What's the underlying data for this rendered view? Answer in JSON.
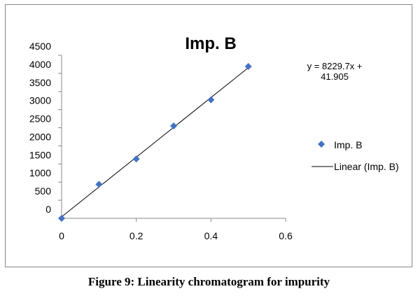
{
  "chart_data": {
    "type": "scatter",
    "title": "Imp. B",
    "xlabel": "",
    "ylabel": "",
    "xlim": [
      0,
      0.6
    ],
    "ylim": [
      0,
      4500
    ],
    "x_ticks": [
      "0",
      "0.2",
      "0.4",
      "0.6"
    ],
    "y_ticks": [
      "0",
      "500",
      "1000",
      "1500",
      "2000",
      "2500",
      "3000",
      "3500",
      "4000",
      "4500"
    ],
    "grid": false,
    "legend_position": "right",
    "series": [
      {
        "name": "Imp. B",
        "marker": "diamond",
        "color": "#4472C4",
        "x": [
          0,
          0.1,
          0.2,
          0.3,
          0.4,
          0.5
        ],
        "y": [
          0,
          940,
          1640,
          2550,
          3270,
          4190
        ]
      }
    ],
    "trendline": {
      "name": "Linear (Imp. B)",
      "slope": 8229.7,
      "intercept": 41.905,
      "x_range": [
        0,
        0.5
      ],
      "color": "#000000"
    },
    "equation_lines": [
      "y = 8229.7x +",
      "41.905"
    ],
    "legend": {
      "marker_label": "Imp. B",
      "line_label": "Linear (Imp. B)"
    }
  },
  "caption": "Figure 9: Linearity chromatogram for impurity"
}
